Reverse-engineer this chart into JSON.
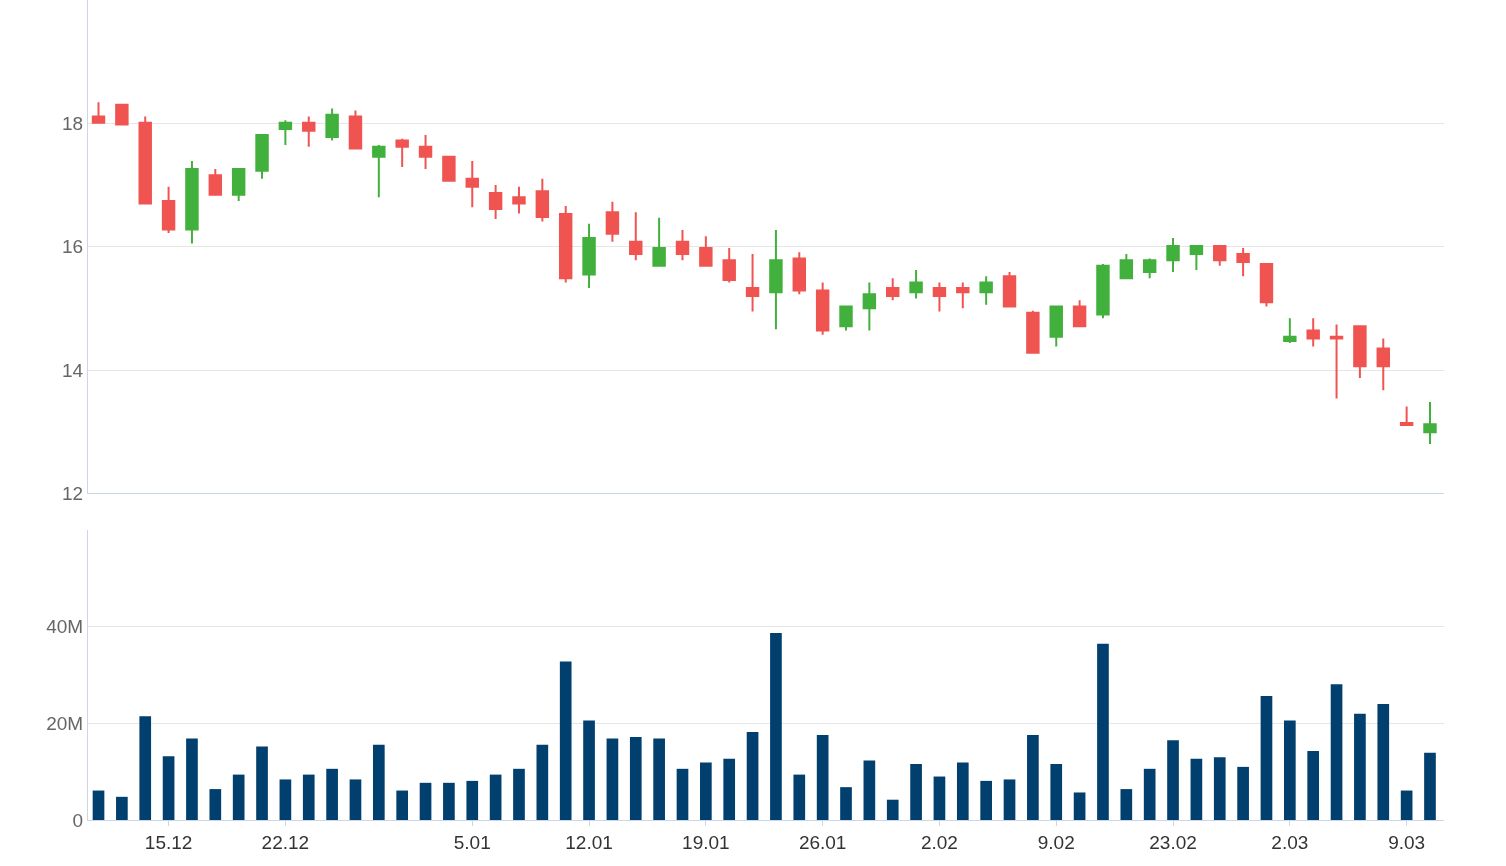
{
  "chart_data": [
    {
      "type": "candlestick",
      "categories": [
        null,
        null,
        null,
        "15.12",
        null,
        null,
        null,
        null,
        "22.12",
        null,
        null,
        null,
        null,
        null,
        null,
        null,
        "5.01",
        null,
        null,
        null,
        null,
        "12.01",
        null,
        null,
        null,
        null,
        "19.01",
        null,
        null,
        null,
        null,
        "26.01",
        null,
        null,
        null,
        null,
        "2.02",
        null,
        null,
        null,
        null,
        "9.02",
        null,
        null,
        null,
        null,
        "23.02",
        null,
        null,
        null,
        null,
        "2.03",
        null,
        null,
        null,
        null,
        "9.03",
        null
      ],
      "ohlc": [
        [
          18.11,
          18.34,
          18.01,
          18.01
        ],
        [
          18.3,
          18.3,
          17.98,
          17.98
        ],
        [
          18.01,
          18.11,
          16.7,
          16.7
        ],
        [
          16.74,
          16.97,
          16.22,
          16.28
        ],
        [
          16.28,
          17.39,
          16.05,
          17.26
        ],
        [
          17.16,
          17.26,
          16.84,
          16.84
        ],
        [
          16.84,
          17.26,
          16.74,
          17.26
        ],
        [
          17.23,
          17.81,
          17.1,
          17.81
        ],
        [
          17.91,
          18.05,
          17.65,
          18.01
        ],
        [
          18.01,
          18.11,
          17.62,
          17.88
        ],
        [
          17.78,
          18.24,
          17.72,
          18.14
        ],
        [
          18.11,
          18.21,
          17.59,
          17.59
        ],
        [
          17.46,
          17.65,
          16.8,
          17.62
        ],
        [
          17.72,
          17.75,
          17.29,
          17.62
        ],
        [
          17.62,
          17.81,
          17.26,
          17.46
        ],
        [
          17.46,
          17.46,
          17.07,
          17.07
        ],
        [
          17.1,
          17.39,
          16.64,
          16.97
        ],
        [
          16.87,
          17.0,
          16.45,
          16.61
        ],
        [
          16.8,
          16.97,
          16.54,
          16.7
        ],
        [
          16.9,
          17.1,
          16.41,
          16.48
        ],
        [
          16.53,
          16.66,
          15.42,
          15.49
        ],
        [
          15.55,
          16.37,
          15.33,
          16.14
        ],
        [
          16.56,
          16.73,
          16.08,
          16.21
        ],
        [
          16.08,
          16.56,
          15.78,
          15.88
        ],
        [
          15.69,
          16.47,
          15.69,
          15.98
        ],
        [
          16.08,
          16.27,
          15.78,
          15.88
        ],
        [
          15.98,
          16.17,
          15.69,
          15.69
        ],
        [
          15.78,
          15.98,
          15.42,
          15.46
        ],
        [
          15.33,
          15.88,
          14.95,
          15.2
        ],
        [
          15.26,
          16.27,
          14.66,
          15.78
        ],
        [
          15.81,
          15.91,
          15.23,
          15.29
        ],
        [
          15.29,
          15.42,
          14.57,
          14.64
        ],
        [
          14.71,
          15.03,
          14.64,
          15.03
        ],
        [
          15.0,
          15.42,
          14.64,
          15.23
        ],
        [
          15.33,
          15.49,
          15.13,
          15.2
        ],
        [
          15.26,
          15.62,
          15.16,
          15.42
        ],
        [
          15.33,
          15.42,
          14.95,
          15.2
        ],
        [
          15.33,
          15.42,
          15.0,
          15.26
        ],
        [
          15.26,
          15.52,
          15.06,
          15.42
        ],
        [
          15.52,
          15.59,
          15.03,
          15.03
        ],
        [
          14.93,
          14.96,
          14.28,
          14.28
        ],
        [
          14.54,
          15.03,
          14.38,
          15.03
        ],
        [
          15.03,
          15.13,
          14.71,
          14.71
        ],
        [
          14.9,
          15.72,
          14.84,
          15.69
        ],
        [
          15.49,
          15.88,
          15.49,
          15.78
        ],
        [
          15.59,
          15.81,
          15.49,
          15.78
        ],
        [
          15.78,
          16.14,
          15.59,
          16.01
        ],
        [
          15.88,
          16.01,
          15.62,
          16.01
        ],
        [
          16.01,
          16.01,
          15.69,
          15.78
        ],
        [
          15.88,
          15.98,
          15.52,
          15.75
        ],
        [
          15.72,
          15.72,
          15.03,
          15.1
        ],
        [
          14.47,
          14.84,
          14.44,
          14.54
        ],
        [
          14.64,
          14.84,
          14.38,
          14.51
        ],
        [
          14.54,
          14.74,
          13.54,
          14.51
        ],
        [
          14.71,
          14.71,
          13.87,
          14.06
        ],
        [
          14.35,
          14.51,
          13.67,
          14.06
        ],
        [
          13.14,
          13.41,
          13.11,
          13.11
        ],
        [
          12.99,
          13.48,
          12.8,
          13.12
        ]
      ],
      "colors": [
        "#f05450",
        "#f05450",
        "#f05450",
        "#f05450",
        "#42b03c",
        "#f05450",
        "#42b03c",
        "#42b03c",
        "#42b03c",
        "#f05450",
        "#42b03c",
        "#f05450",
        "#42b03c",
        "#f05450",
        "#f05450",
        "#f05450",
        "#f05450",
        "#f05450",
        "#f05450",
        "#f05450",
        "#f05450",
        "#42b03c",
        "#f05450",
        "#f05450",
        "#42b03c",
        "#f05450",
        "#f05450",
        "#f05450",
        "#f05450",
        "#42b03c",
        "#f05450",
        "#f05450",
        "#42b03c",
        "#42b03c",
        "#f05450",
        "#42b03c",
        "#f05450",
        "#f05450",
        "#42b03c",
        "#f05450",
        "#f05450",
        "#42b03c",
        "#f05450",
        "#42b03c",
        "#42b03c",
        "#42b03c",
        "#42b03c",
        "#42b03c",
        "#f05450",
        "#f05450",
        "#f05450",
        "#42b03c",
        "#f05450",
        "#f05450",
        "#f05450",
        "#f05450",
        "#f05450",
        "#42b03c"
      ],
      "ylim": [
        12,
        20
      ],
      "yticks": [
        12,
        14,
        16,
        18
      ],
      "grid": "y",
      "tick_labels": "y"
    },
    {
      "type": "bar",
      "categories": [
        null,
        null,
        null,
        "15.12",
        null,
        null,
        null,
        null,
        "22.12",
        null,
        null,
        null,
        null,
        null,
        null,
        null,
        "5.01",
        null,
        null,
        null,
        null,
        "12.01",
        null,
        null,
        null,
        null,
        "19.01",
        null,
        null,
        null,
        null,
        "26.01",
        null,
        null,
        null,
        null,
        "2.02",
        null,
        null,
        null,
        null,
        "9.02",
        null,
        null,
        null,
        null,
        "23.02",
        null,
        null,
        null,
        null,
        "2.03",
        null,
        null,
        null,
        null,
        "9.03",
        null
      ],
      "values": [
        6.1,
        4.8,
        21.5,
        13.2,
        16.9,
        6.4,
        9.4,
        15.2,
        8.4,
        9.4,
        10.6,
        8.4,
        15.6,
        6.1,
        7.7,
        7.7,
        8.1,
        9.4,
        10.6,
        15.6,
        32.8,
        20.6,
        16.9,
        17.2,
        16.9,
        10.6,
        11.9,
        12.7,
        18.2,
        38.7,
        9.4,
        17.6,
        6.8,
        12.3,
        4.2,
        11.6,
        9.0,
        11.9,
        8.1,
        8.4,
        17.6,
        11.6,
        5.7,
        36.5,
        6.4,
        10.6,
        16.5,
        12.7,
        13.0,
        11.0,
        25.7,
        20.6,
        14.3,
        28.1,
        22.0,
        24.0,
        6.1,
        13.9
      ],
      "color": "#003f6e",
      "ylim": [
        0,
        60
      ],
      "yticks": [
        0,
        {
          "value": 20,
          "label": "20M"
        },
        {
          "value": 40,
          "label": "40M"
        }
      ],
      "grid": "y"
    }
  ]
}
